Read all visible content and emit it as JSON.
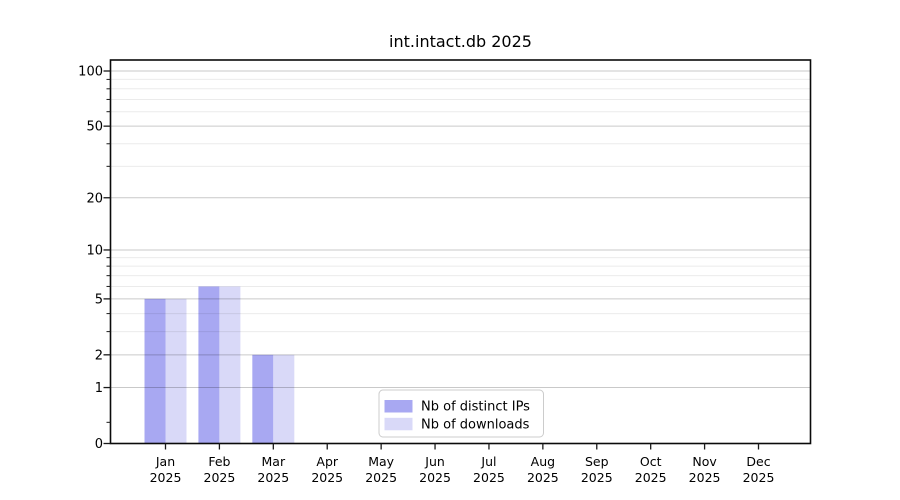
{
  "chart_data": {
    "type": "bar",
    "title": "int.intact.db 2025",
    "categories": [
      "Jan",
      "Feb",
      "Mar",
      "Apr",
      "May",
      "Jun",
      "Jul",
      "Aug",
      "Sep",
      "Oct",
      "Nov",
      "Dec"
    ],
    "category_year": "2025",
    "series": [
      {
        "name": "Nb of distinct IPs",
        "color": "#a8a8f2",
        "values": [
          5,
          6,
          2,
          0,
          0,
          0,
          0,
          0,
          0,
          0,
          0,
          0
        ]
      },
      {
        "name": "Nb of downloads",
        "color": "#d9d9f8",
        "values": [
          5,
          6,
          2,
          0,
          0,
          0,
          0,
          0,
          0,
          0,
          0,
          0
        ]
      }
    ],
    "yscale": "log1p",
    "ylim": [
      0,
      113
    ],
    "yticks": [
      0,
      1,
      2,
      5,
      10,
      20,
      50,
      100
    ],
    "minor_yticks": [
      0.3,
      3,
      4,
      6,
      7,
      8,
      9,
      30,
      40,
      60,
      70,
      80,
      90
    ],
    "grid": true,
    "legend_position": "lower center"
  }
}
